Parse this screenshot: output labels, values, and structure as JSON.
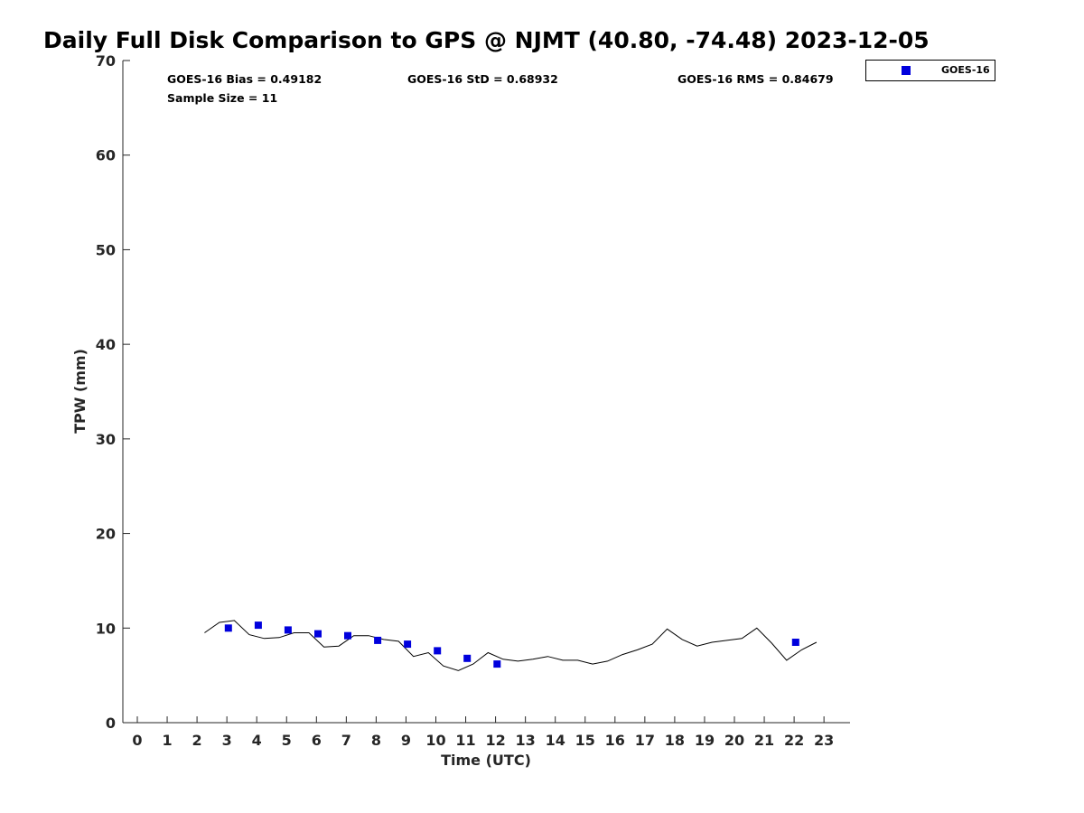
{
  "chart_data": {
    "type": "scatter",
    "title": "Daily Full Disk Comparison to GPS @ NJMT (40.80, -74.48) 2023-12-05",
    "xlabel": "Time (UTC)",
    "ylabel": "TPW (mm)",
    "xlim": [
      -0.5,
      23.8
    ],
    "ylim": [
      0,
      70
    ],
    "xticks": [
      0,
      1,
      2,
      3,
      4,
      5,
      6,
      7,
      8,
      9,
      10,
      11,
      12,
      13,
      14,
      15,
      16,
      17,
      18,
      19,
      20,
      21,
      22,
      23
    ],
    "yticks": [
      0,
      10,
      20,
      30,
      40,
      50,
      60,
      70
    ],
    "grid": false,
    "legend_position": "outside-top-right",
    "stats": {
      "bias": "GOES-16 Bias = 0.49182",
      "std": "GOES-16 StD = 0.68932",
      "rms": "GOES-16 RMS = 0.84679",
      "sample": "Sample Size = 11"
    },
    "series": [
      {
        "name": "GOES-16",
        "kind": "scatter",
        "marker": "square",
        "color": "#0000dd",
        "x": [
          3.05,
          4.05,
          5.05,
          6.05,
          7.05,
          8.05,
          9.05,
          10.05,
          11.05,
          12.05,
          22.05
        ],
        "y": [
          10.0,
          10.3,
          9.8,
          9.4,
          9.2,
          8.7,
          8.3,
          7.6,
          6.8,
          6.2,
          8.5
        ]
      },
      {
        "kind": "line",
        "color": "#000000",
        "x": [
          2.25,
          2.75,
          3.25,
          3.75,
          4.25,
          4.75,
          5.25,
          5.75,
          6.25,
          6.75,
          7.25,
          7.75,
          8.25,
          8.75,
          9.25,
          9.75,
          10.25,
          10.75,
          11.25,
          11.75,
          12.25,
          12.75,
          13.25,
          13.75,
          14.25,
          14.75,
          15.25,
          15.75,
          16.25,
          16.75,
          17.25,
          17.75,
          18.25,
          18.75,
          19.25,
          19.75,
          20.25,
          20.75,
          21.25,
          21.75,
          22.25,
          22.75
        ],
        "y": [
          9.5,
          10.6,
          10.8,
          9.3,
          8.9,
          9.0,
          9.5,
          9.5,
          8.0,
          8.1,
          9.2,
          9.2,
          8.8,
          8.6,
          7.0,
          7.4,
          6.0,
          5.5,
          6.2,
          7.4,
          6.7,
          6.5,
          6.7,
          7.0,
          6.6,
          6.6,
          6.2,
          6.5,
          7.2,
          7.7,
          8.3,
          9.9,
          8.8,
          8.1,
          8.5,
          8.7,
          8.9,
          10.0,
          8.4,
          6.6,
          7.7,
          8.5
        ]
      }
    ]
  }
}
